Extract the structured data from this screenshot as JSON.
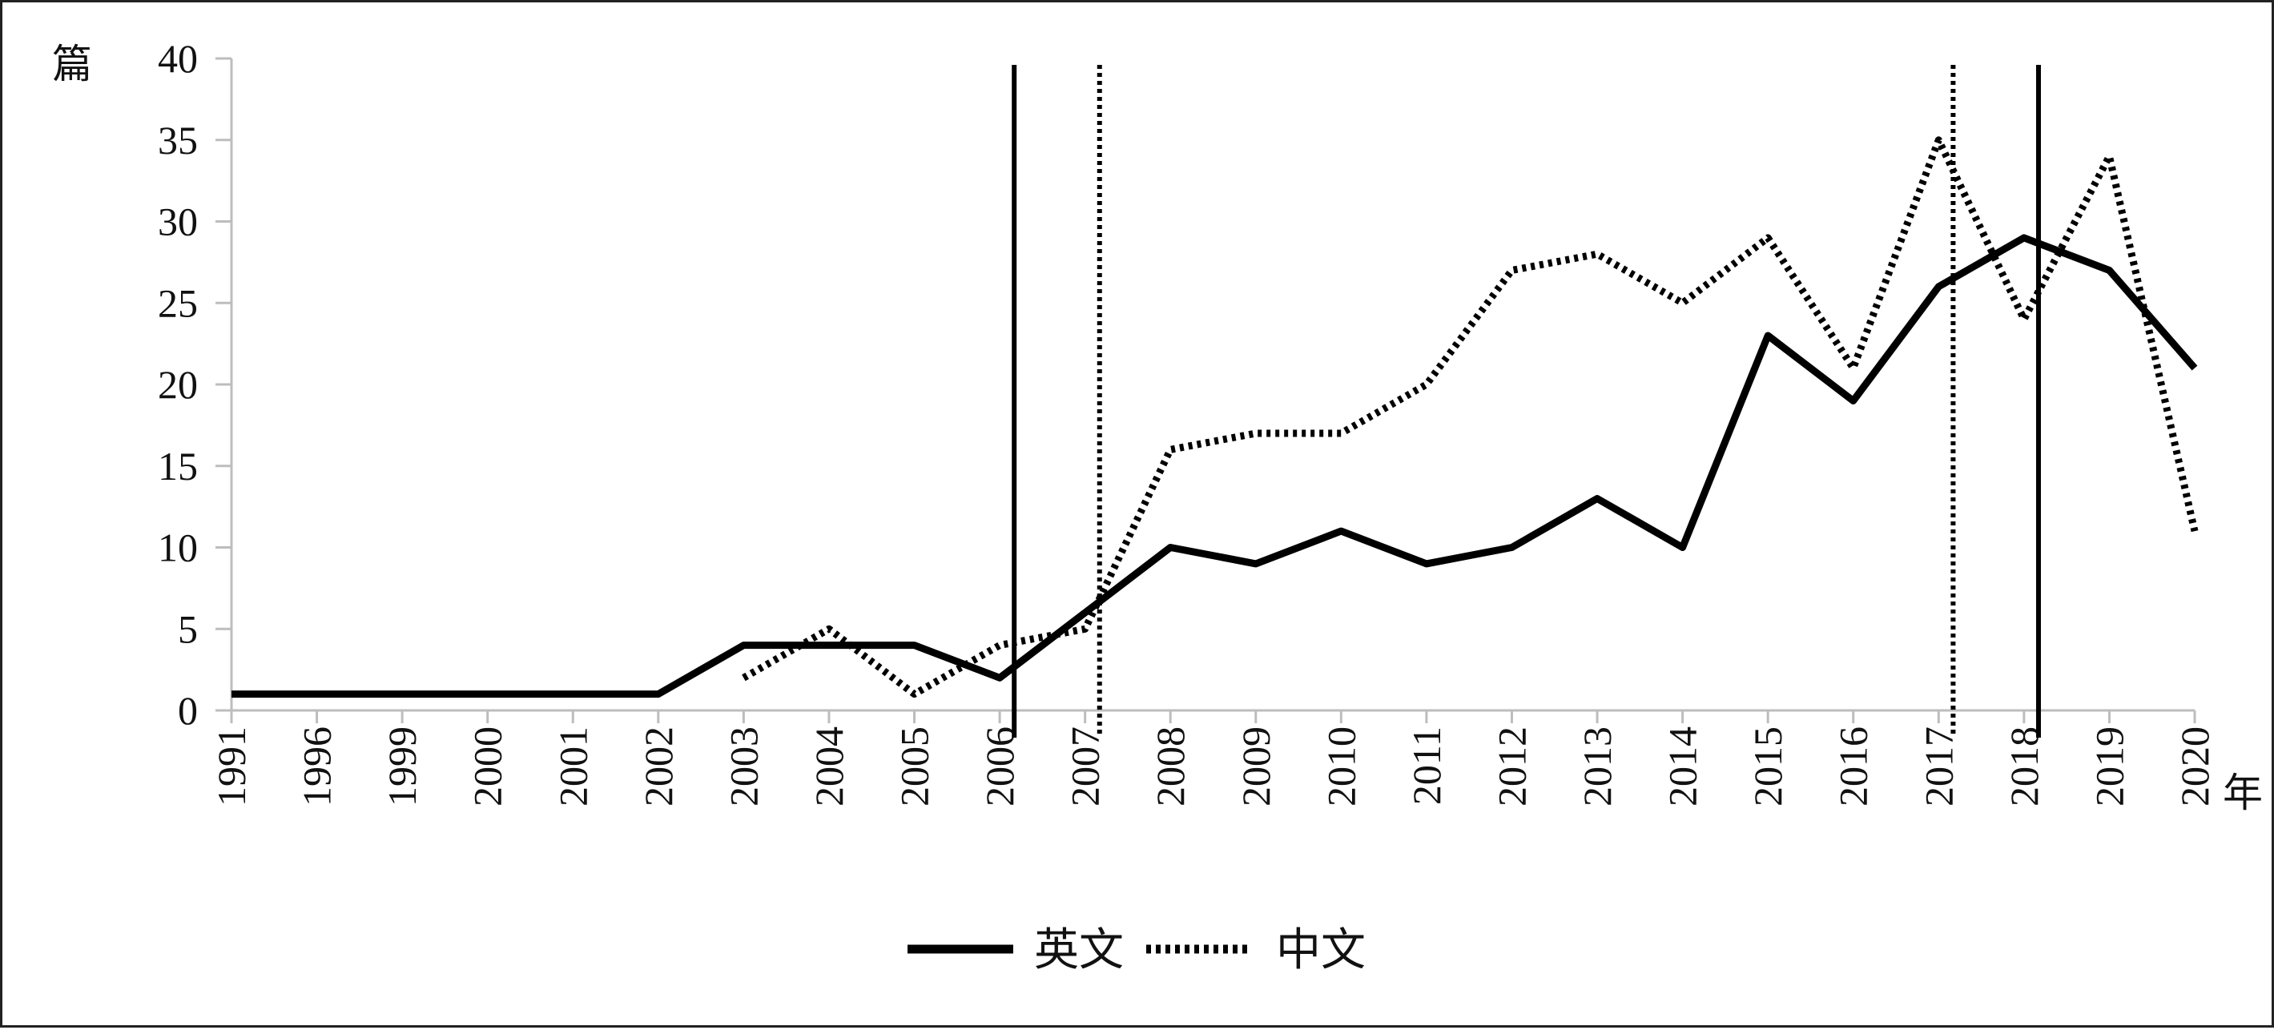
{
  "chart_data": {
    "type": "line",
    "title": "",
    "ylabel": "篇",
    "xlabel": "年",
    "ylim": [
      0,
      40
    ],
    "yticks": [
      0,
      5,
      10,
      15,
      20,
      25,
      30,
      35,
      40
    ],
    "categories": [
      "1991",
      "1996",
      "1999",
      "2000",
      "2001",
      "2002",
      "2003",
      "2004",
      "2005",
      "2006",
      "2007",
      "2008",
      "2009",
      "2010",
      "2011",
      "2012",
      "2013",
      "2014",
      "2015",
      "2016",
      "2017",
      "2018",
      "2019",
      "2020"
    ],
    "series": [
      {
        "name": "英文",
        "style": "solid",
        "color": "#000000",
        "values": [
          1,
          1,
          1,
          1,
          1,
          1,
          4,
          4,
          4,
          2,
          6,
          10,
          9,
          11,
          9,
          10,
          13,
          10,
          23,
          19,
          26,
          29,
          27,
          21
        ]
      },
      {
        "name": "中文",
        "style": "dotted",
        "color": "#000000",
        "values": [
          null,
          null,
          null,
          null,
          null,
          null,
          2,
          5,
          1,
          4,
          5,
          16,
          17,
          17,
          20,
          27,
          28,
          25,
          29,
          21,
          35,
          24,
          34,
          11
        ]
      }
    ],
    "reference_lines": [
      {
        "x": "2006",
        "style": "solid"
      },
      {
        "x": "2007",
        "style": "dotted"
      },
      {
        "x": "2017",
        "style": "dotted"
      },
      {
        "x": "2018",
        "style": "solid"
      }
    ],
    "grid": false,
    "legend_position": "bottom-center"
  }
}
